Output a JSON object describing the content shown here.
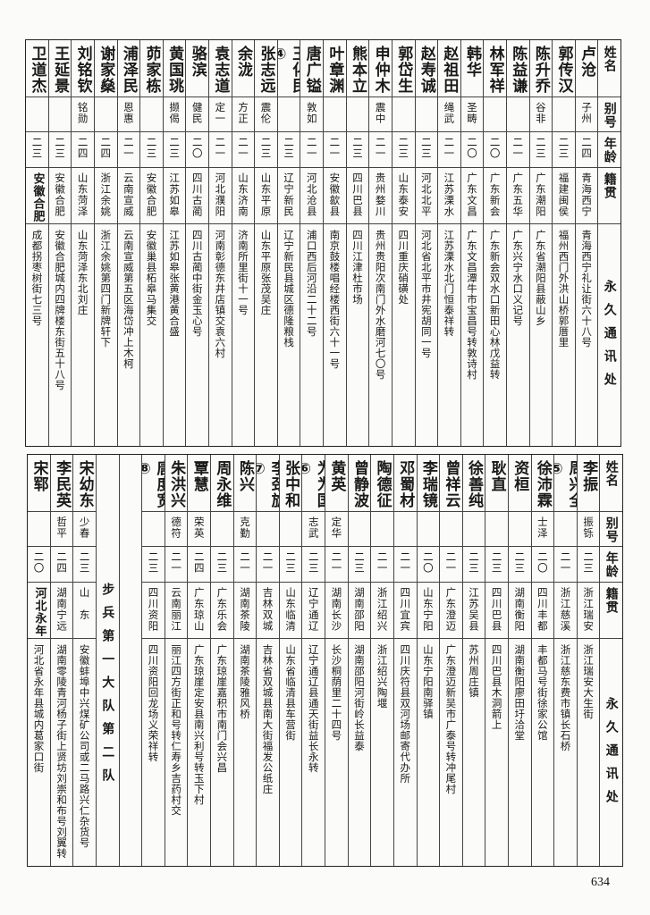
{
  "headers": {
    "name": "姓名",
    "alias": "别号",
    "age": "年龄",
    "origin": "籍贯",
    "address": "永久通讯处"
  },
  "top_table": [
    {
      "name": "卢沧",
      "alias": "子州",
      "age": "二四",
      "origin": "青海西宁",
      "address": "青海西宁礼让街六十八号"
    },
    {
      "name": "郭传汉",
      "alias": "",
      "age": "二三",
      "origin": "福建闽侯",
      "address": "福州西门外洪山桥郭厝里"
    },
    {
      "name": "陈升乔",
      "alias": "谷非",
      "age": "二三",
      "origin": "广东潮阳",
      "address": "广东省潮阳县蔽山乡"
    },
    {
      "name": "陈益谦",
      "alias": "",
      "age": "二一",
      "origin": "广东五华",
      "address": "广东兴宁水口义记号"
    },
    {
      "name": "林军祥",
      "alias": "",
      "age": "二〇",
      "origin": "广东新会",
      "address": "广东新会双水口新田心林戊益转"
    },
    {
      "name": "韩华",
      "alias": "圣畴",
      "age": "二〇",
      "origin": "广东文昌",
      "address": "广东文昌潭牛市宝昌号转敦诗村"
    },
    {
      "name": "赵祖田",
      "alias": "绳武",
      "age": "二一",
      "origin": "江苏溧水",
      "address": "江苏溧水北门恒泰祥转"
    },
    {
      "name": "赵寿诚",
      "alias": "",
      "age": "二三",
      "origin": "河北北平",
      "address": "河北省北平市井宪胡同一号"
    },
    {
      "name": "郭岱生",
      "alias": "",
      "age": "二三",
      "origin": "山东泰安",
      "address": "四川重庆硝磺处"
    },
    {
      "name": "申仲木",
      "alias": "震中",
      "age": "二一",
      "origin": "贵州婺川",
      "address": "贵州贵阳次南门外水磨河七〇号"
    },
    {
      "name": "熊本立",
      "alias": "",
      "age": "二三",
      "origin": "四川巴县",
      "address": "四川江津杜市场"
    },
    {
      "name": "叶章渊",
      "alias": "",
      "age": "二一",
      "origin": "安徽歙县",
      "address": "南京鼓楼唱经楼西街六十一号"
    },
    {
      "name": "唐广镒",
      "alias": "敦如",
      "age": "二一",
      "origin": "河北沧县",
      "address": "浦口西后河沿二十二号"
    },
    {
      "name": "王化民④",
      "alias": "",
      "age": "二三",
      "origin": "辽宁新民",
      "address": "辽宁新民县城区德隆粮栈"
    },
    {
      "name": "张志远",
      "alias": "震伦",
      "age": "二三",
      "origin": "山东平原",
      "address": "山东平原张茂吴庄"
    },
    {
      "name": "余泷",
      "alias": "方正",
      "age": "二一",
      "origin": "山东济南",
      "address": "济南所里街十一号"
    },
    {
      "name": "袁志道",
      "alias": "定一",
      "age": "二一",
      "origin": "河北濮阳",
      "address": "河南彰德东井店镇交袁六村"
    },
    {
      "name": "骆滨",
      "alias": "健民",
      "age": "二〇",
      "origin": "四川古蔺",
      "address": "四川古蔺中街金玉心号"
    },
    {
      "name": "黄国珧",
      "alias": "撷偈",
      "age": "二三",
      "origin": "江苏如皋",
      "address": "江苏如皋张黄港黄合盛"
    },
    {
      "name": "茆家栋",
      "alias": "",
      "age": "二三",
      "origin": "安徽合肥",
      "address": "安徽巢县柘皋马集交"
    },
    {
      "name": "浦泽民",
      "alias": "恩惠",
      "age": "二一",
      "origin": "云南宣威",
      "address": "云南宣威第五区海岱冲上木柯"
    },
    {
      "name": "谢家燊",
      "alias": "",
      "age": "二四",
      "origin": "浙江余姚",
      "address": "浙江余姚第四门新牌轩下"
    },
    {
      "name": "刘铭钦",
      "alias": "铭勋",
      "age": "二四",
      "origin": "山东菏泽",
      "address": "山东菏泽东北刘庄"
    },
    {
      "name": "王延景",
      "alias": "",
      "age": "二三",
      "origin": "安徽合肥",
      "address": "安徽合肥城内四牌楼东街五十八号"
    },
    {
      "name": "卫道杰",
      "alias": "",
      "age": "二三",
      "origin": "安徽合肥",
      "address": "成都拐枣树街七三号"
    }
  ],
  "bottom_table": [
    {
      "name": "李振",
      "alias": "振铄",
      "age": "二三",
      "origin": "浙江瑞安",
      "address": "浙江瑞安大生街"
    },
    {
      "name": "周兴全⑤",
      "alias": "",
      "age": "二一",
      "origin": "浙江慈溪",
      "address": "浙江慈东费市镇长石桥"
    },
    {
      "name": "徐沛霖",
      "alias": "士泽",
      "age": "二〇",
      "origin": "四川丰都",
      "address": "丰都马号街徐家公馆"
    },
    {
      "name": "资桓",
      "alias": "",
      "age": "二三",
      "origin": "湖南衡阳",
      "address": "湖南衡阳廖田圩洽堂"
    },
    {
      "name": "耿直",
      "alias": "",
      "age": "二三",
      "origin": "四川巴县",
      "address": "四川巴县木洞箭上"
    },
    {
      "name": "徐善纯",
      "alias": "",
      "age": "二三",
      "origin": "江苏吴县",
      "address": "苏州周庄镇"
    },
    {
      "name": "曾祥云",
      "alias": "",
      "age": "二一",
      "origin": "广东澄迈",
      "address": "广东澄迈新吴市广泰号转冲尾村"
    },
    {
      "name": "李瑞镜",
      "alias": "",
      "age": "二〇",
      "origin": "山东宁阳",
      "address": "山东宁阳南驿镇"
    },
    {
      "name": "邓蜀材",
      "alias": "",
      "age": "二一",
      "origin": "四川宜宾",
      "address": "四川庆符县双河场邮寄代办所"
    },
    {
      "name": "陶德征",
      "alias": "",
      "age": "二一",
      "origin": "浙江绍兴",
      "address": "浙江绍兴陶堰"
    },
    {
      "name": "曾静波",
      "alias": "",
      "age": "二三",
      "origin": "湖南邵阳",
      "address": "湖南邵阳河街岭长益泰"
    },
    {
      "name": "黄英",
      "alias": "定华",
      "age": "二一",
      "origin": "湖南长沙",
      "address": "长沙桐荫里二十四号"
    },
    {
      "name": "为为国⑥",
      "alias": "志武",
      "age": "二三",
      "origin": "辽宁通辽",
      "address": "辽宁通辽县通天街益长永转"
    },
    {
      "name": "张中和",
      "alias": "",
      "age": "二三",
      "origin": "山东临清",
      "address": "山东省临清县车营街"
    },
    {
      "name": "李劲旋⑦",
      "alias": "",
      "age": "二一",
      "origin": "吉林双城",
      "address": "吉林省双城县南大街福发公纸庄"
    },
    {
      "name": "陈兴",
      "alias": "克勤",
      "age": "二一",
      "origin": "湖南茶陵",
      "address": "湖南茶陵雅风桥"
    },
    {
      "name": "周永维",
      "alias": "",
      "age": "二三",
      "origin": "广东乐会",
      "address": "广东琼崖嘉积市南门会兴昌"
    },
    {
      "name": "覃慧",
      "alias": "荣英",
      "age": "二四",
      "origin": "广东琼山",
      "address": "广东琼崖定安县南兴利号转玉下村"
    },
    {
      "name": "朱洪兴",
      "alias": "德符",
      "age": "二一",
      "origin": "云南丽江",
      "address": "丽江四方街正和号转仁寿乡吉药村交"
    },
    {
      "name": "唐度宽⑧",
      "alias": "",
      "age": "二三",
      "origin": "四川资阳",
      "address": "四川资阳回龙场义荣祥转"
    }
  ],
  "section_label": "步兵第一大队第二队",
  "bottom_table_after": [
    {
      "name": "宋幼东",
      "alias": "少春",
      "age": "二三",
      "origin": "山　东",
      "address": "安徽蚌埠中兴煤矿公司或二马路兴仁杂货号"
    },
    {
      "name": "李民英",
      "alias": "哲平",
      "age": "二四",
      "origin": "湖南宁远",
      "address": "湖南零陵青河杨子街上贤坊刘崇和布号刘翼转"
    },
    {
      "name": "宋郓",
      "alias": "",
      "age": "二〇",
      "origin": "河北永年",
      "address": "河北省永年县城内葛家口街"
    }
  ],
  "page_number": "634"
}
